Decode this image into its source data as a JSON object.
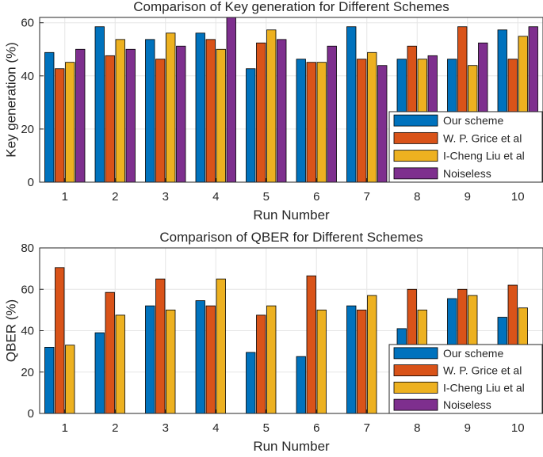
{
  "colors": {
    "series": [
      "#0072BD",
      "#D95319",
      "#EDB120",
      "#7E2F8E"
    ],
    "grid": "#e6e6e6",
    "axis": "#262626"
  },
  "chart_data": [
    {
      "type": "bar",
      "title": "Comparison of Key generation for Different Schemes",
      "xlabel": "Run Number",
      "ylabel": "Key generation (%)",
      "categories": [
        "1",
        "2",
        "3",
        "4",
        "5",
        "6",
        "7",
        "8",
        "9",
        "10"
      ],
      "ylim": [
        0,
        62
      ],
      "yticks": [
        0,
        20,
        40,
        60
      ],
      "grid": true,
      "legend_position": "bottom-right",
      "series": [
        {
          "name": "Our scheme",
          "values": [
            48.8,
            58.5,
            53.7,
            56.1,
            42.7,
            46.3,
            58.5,
            46.3,
            46.3,
            57.3
          ]
        },
        {
          "name": "W. P. Grice et al",
          "values": [
            42.7,
            47.6,
            46.3,
            53.7,
            52.4,
            45.1,
            46.3,
            51.2,
            58.5,
            46.3
          ]
        },
        {
          "name": "I-Cheng Liu et al",
          "values": [
            45.1,
            53.7,
            56.1,
            50.0,
            57.3,
            45.1,
            48.8,
            46.3,
            43.9,
            54.9
          ]
        },
        {
          "name": "Noiseless",
          "values": [
            50.0,
            50.0,
            51.2,
            63.4,
            53.7,
            51.2,
            43.9,
            47.6,
            52.4,
            58.5
          ]
        }
      ]
    },
    {
      "type": "bar",
      "title": "Comparison of QBER for Different Schemes",
      "xlabel": "Run Number",
      "ylabel": "QBER (%)",
      "categories": [
        "1",
        "2",
        "3",
        "4",
        "5",
        "6",
        "7",
        "8",
        "9",
        "10"
      ],
      "ylim": [
        0,
        80
      ],
      "yticks": [
        0,
        20,
        40,
        60,
        80
      ],
      "grid": true,
      "legend_position": "bottom-right",
      "series": [
        {
          "name": "Our scheme",
          "values": [
            32.0,
            39.0,
            52.0,
            54.5,
            29.5,
            27.5,
            52.0,
            41.0,
            55.5,
            46.5
          ]
        },
        {
          "name": "W. P. Grice et al",
          "values": [
            70.5,
            58.5,
            65.0,
            52.0,
            47.5,
            66.5,
            50.0,
            60.0,
            60.0,
            62.0
          ]
        },
        {
          "name": "I-Cheng Liu et al",
          "values": [
            33.0,
            47.5,
            50.0,
            65.0,
            52.0,
            50.0,
            57.0,
            50.0,
            57.0,
            51.0
          ]
        },
        {
          "name": "Noiseless",
          "values": [
            0,
            0,
            0,
            0,
            0,
            0,
            0,
            0,
            0,
            0
          ]
        }
      ]
    }
  ]
}
